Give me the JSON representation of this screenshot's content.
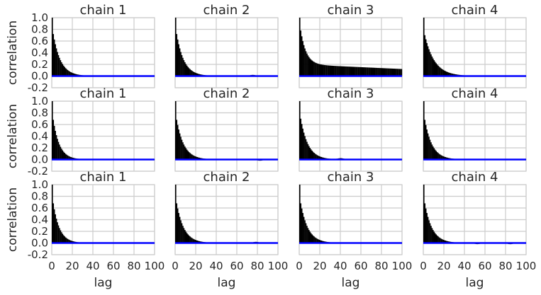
{
  "chart_data": {
    "type": "bar",
    "layout": "3x4 grid of autocorrelation panels, shared axes",
    "xlabel": "lag",
    "ylabel": "correlation",
    "xlim": [
      0,
      100
    ],
    "ylim": [
      -0.2,
      1.0
    ],
    "xticks": [
      "0",
      "20",
      "40",
      "60",
      "80",
      "100"
    ],
    "yticks": [
      "-0.2",
      "0.0",
      "0.2",
      "0.4",
      "0.6",
      "0.8",
      "1.0"
    ],
    "grid": true,
    "bar_color": "#000000",
    "zero_line_color": "#0000ff",
    "lags": 100,
    "panels": [
      [
        {
          "title": "chain 1",
          "profile": {
            "start": 0.72,
            "rho": 0.87,
            "floor": 0.0,
            "bumps": []
          }
        },
        {
          "title": "chain 2",
          "profile": {
            "start": 0.72,
            "rho": 0.87,
            "floor": 0.0,
            "bumps": [
              [
                75,
                0.02
              ]
            ]
          }
        },
        {
          "title": "chain 3",
          "profile": {
            "start": 0.78,
            "rho": 0.83,
            "floor": 0.2,
            "floor_end": 0.12,
            "bumps": []
          }
        },
        {
          "title": "chain 4",
          "profile": {
            "start": 0.7,
            "rho": 0.9,
            "floor": 0.0,
            "bumps": []
          }
        }
      ],
      [
        {
          "title": "chain 1",
          "profile": {
            "start": 0.68,
            "rho": 0.85,
            "floor": 0.0,
            "bumps": []
          }
        },
        {
          "title": "chain 2",
          "profile": {
            "start": 0.68,
            "rho": 0.87,
            "floor": 0.0,
            "bumps": [
              [
                82,
                -0.02
              ]
            ]
          }
        },
        {
          "title": "chain 3",
          "profile": {
            "start": 0.7,
            "rho": 0.87,
            "floor": 0.0,
            "bumps": [
              [
                40,
                0.02
              ],
              [
                60,
                0.01
              ]
            ]
          }
        },
        {
          "title": "chain 4",
          "profile": {
            "start": 0.68,
            "rho": 0.87,
            "floor": 0.0,
            "bumps": []
          }
        }
      ],
      [
        {
          "title": "chain 1",
          "profile": {
            "start": 0.68,
            "rho": 0.85,
            "floor": 0.0,
            "bumps": []
          }
        },
        {
          "title": "chain 2",
          "profile": {
            "start": 0.68,
            "rho": 0.87,
            "floor": 0.0,
            "bumps": [
              [
                78,
                0.02
              ]
            ]
          }
        },
        {
          "title": "chain 3",
          "profile": {
            "start": 0.68,
            "rho": 0.87,
            "floor": 0.0,
            "bumps": []
          }
        },
        {
          "title": "chain 4",
          "profile": {
            "start": 0.68,
            "rho": 0.87,
            "floor": 0.0,
            "bumps": [
              [
                52,
                -0.02
              ],
              [
                84,
                -0.02
              ]
            ]
          }
        }
      ]
    ]
  }
}
